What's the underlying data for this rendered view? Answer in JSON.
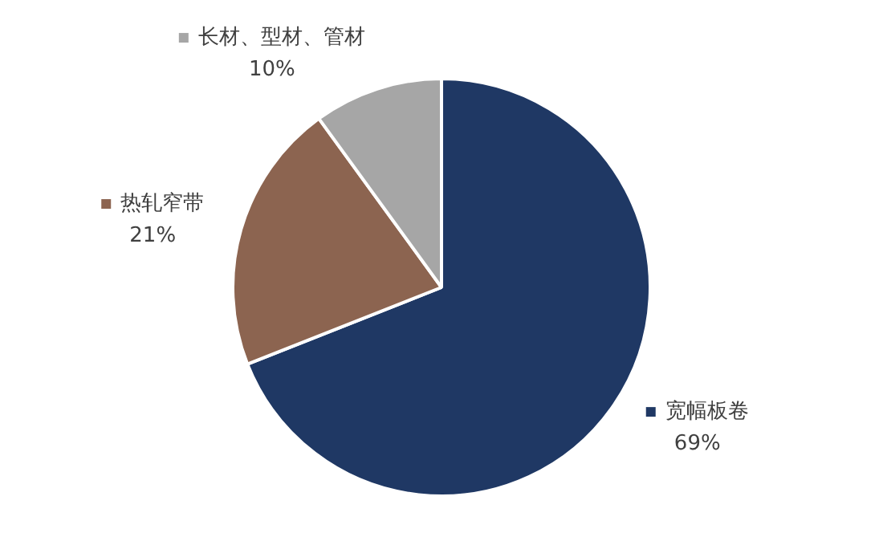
{
  "chart_data": {
    "type": "pie",
    "categories": [
      "宽幅板卷",
      "热轧窄带",
      "长材、型材、管材"
    ],
    "values": [
      69,
      21,
      10
    ],
    "colors": [
      "#1f3864",
      "#8c6450",
      "#a6a6a6"
    ],
    "value_labels": [
      "69%",
      "21%",
      "10%"
    ],
    "legend": "right"
  }
}
